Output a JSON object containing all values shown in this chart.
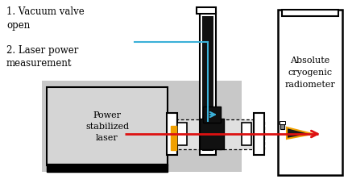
{
  "bg_color": "#ffffff",
  "text_color": "#000000",
  "label1": "1. Vacuum valve\nopen",
  "label2": "2. Laser power\nmeasurement",
  "label_laser": "Power\nstabilized\nlaser",
  "label_radiometer": "Absolute\ncryogenic\nradiometer",
  "arrow_blue_color": "#3bb0d8",
  "arrow_red_color": "#dd1111",
  "orange_color": "#f0a000",
  "black": "#000000",
  "white": "#ffffff",
  "gray_light": "#cccccc",
  "gray_mid": "#d0d0d0"
}
